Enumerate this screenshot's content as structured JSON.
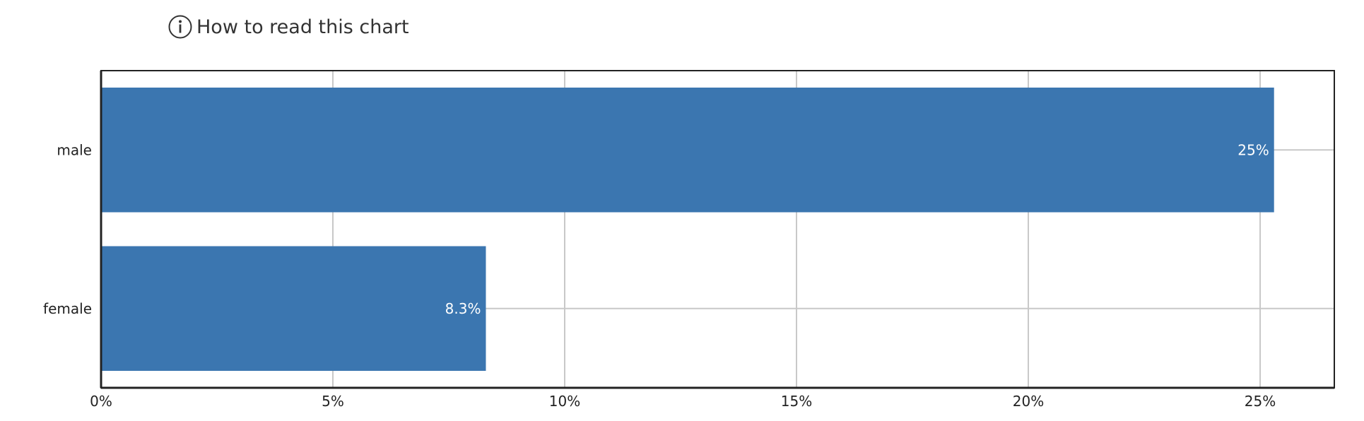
{
  "help": {
    "label": "How to read this chart",
    "icon": "info-icon"
  },
  "chart_data": {
    "type": "bar",
    "orientation": "horizontal",
    "categories": [
      "male",
      "female"
    ],
    "values": [
      25.3,
      8.3
    ],
    "data_labels": [
      "25%",
      "8.3%"
    ],
    "x_ticks": [
      "0%",
      "5%",
      "10%",
      "15%",
      "20%",
      "25%"
    ],
    "x_tick_values": [
      0,
      5,
      10,
      15,
      20,
      25
    ],
    "xlim": [
      0,
      26.6
    ],
    "grid": true,
    "legend": "none",
    "bar_color": "#3b76b0",
    "grid_color": "#c8c8c8",
    "axis_color": "#222222"
  }
}
